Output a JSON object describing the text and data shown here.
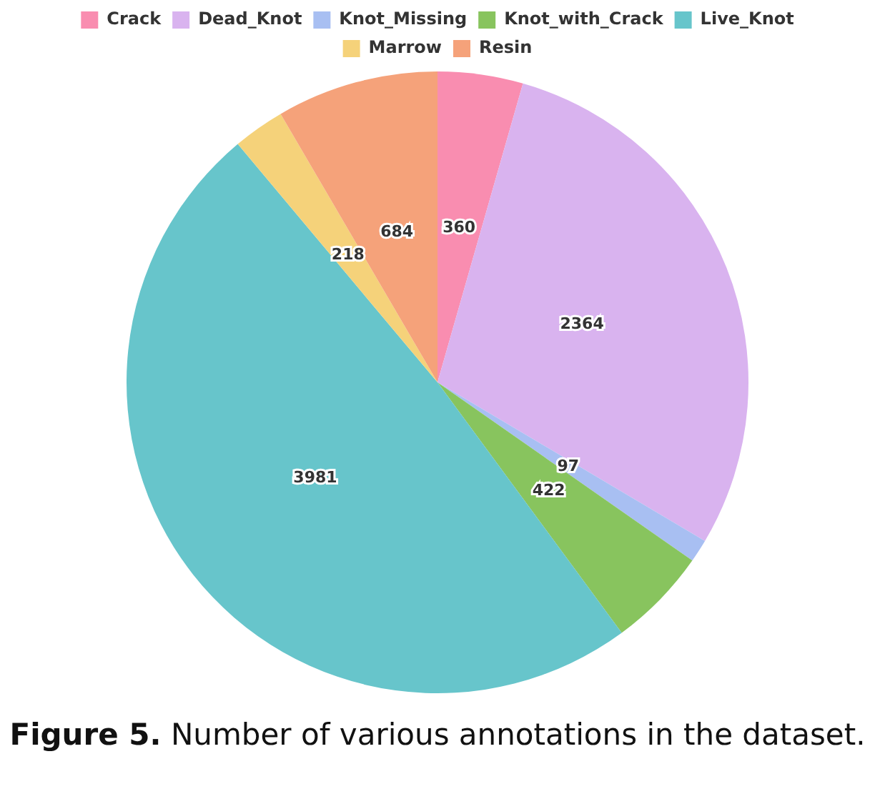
{
  "chart_data": {
    "type": "pie",
    "categories": [
      "Crack",
      "Dead_Knot",
      "Knot_Missing",
      "Knot_with_Crack",
      "Live_Knot",
      "Marrow",
      "Resin"
    ],
    "values": [
      360,
      2364,
      97,
      422,
      3981,
      218,
      684
    ],
    "colors": [
      "#f98db0",
      "#d9b3ef",
      "#a8bff2",
      "#88c45e",
      "#67c5cb",
      "#f5d27a",
      "#f5a27a"
    ],
    "data_labels": true,
    "legend": "top",
    "annotations": [
      "Figure 5. Number of various annotations in the dataset."
    ]
  }
}
